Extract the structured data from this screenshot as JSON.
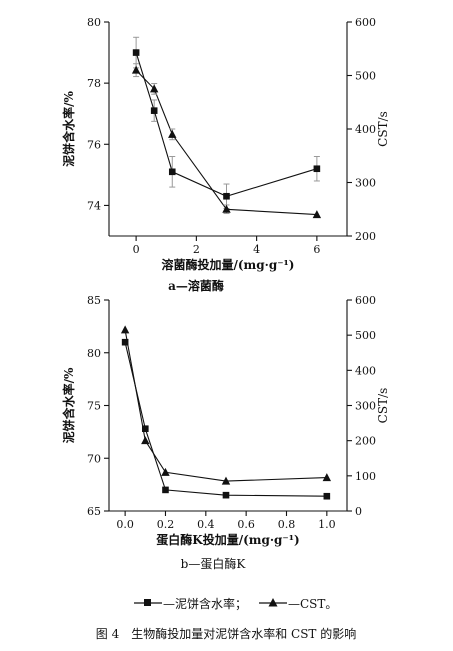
{
  "chart_data": [
    {
      "type": "line",
      "xlabel": "溶菌酶投加量/(mg·g⁻¹)",
      "ylabel_left": "泥饼含水率/%",
      "ylabel_right": "CST/s",
      "caption": "a—溶菌酶",
      "xlim": [
        -0.9,
        7
      ],
      "ylim_left": [
        73,
        80
      ],
      "ylim_right": [
        200,
        600
      ],
      "xticks": [
        0,
        2,
        4,
        6
      ],
      "yticks_left": [
        74,
        76,
        78,
        80
      ],
      "yticks_right": [
        200,
        300,
        400,
        500,
        600
      ],
      "series": [
        {
          "axis": "left",
          "marker": "square",
          "x": [
            0,
            0.6,
            1.2,
            3,
            6
          ],
          "y": [
            79.0,
            77.1,
            75.1,
            74.3,
            75.2
          ],
          "err": [
            0.5,
            0.35,
            0.5,
            0.4,
            0.4
          ]
        },
        {
          "axis": "right",
          "marker": "triangle",
          "x": [
            0,
            0.6,
            1.2,
            3,
            6
          ],
          "y": [
            510,
            475,
            390,
            250,
            240
          ],
          "err": [
            12,
            10,
            10,
            8,
            0
          ]
        }
      ]
    },
    {
      "type": "line",
      "xlabel": "蛋白酶K投加量/(mg·g⁻¹)",
      "ylabel_left": "泥饼含水率/%",
      "ylabel_right": "CST/s",
      "caption": "b—蛋白酶K",
      "xlim": [
        -0.08,
        1.1
      ],
      "ylim_left": [
        65,
        85
      ],
      "ylim_right": [
        0,
        600
      ],
      "xticks": [
        0.0,
        0.2,
        0.4,
        0.6,
        0.8,
        1.0
      ],
      "yticks_left": [
        65,
        70,
        75,
        80,
        85
      ],
      "yticks_right": [
        0,
        100,
        200,
        300,
        400,
        500,
        600
      ],
      "series": [
        {
          "axis": "left",
          "marker": "square",
          "x": [
            0,
            0.1,
            0.2,
            0.5,
            1.0
          ],
          "y": [
            81.0,
            72.8,
            67.0,
            66.5,
            66.4
          ],
          "err": [
            0,
            0,
            0,
            0,
            0
          ]
        },
        {
          "axis": "right",
          "marker": "triangle",
          "x": [
            0,
            0.1,
            0.2,
            0.5,
            1.0
          ],
          "y": [
            515,
            200,
            110,
            85,
            95
          ],
          "err": [
            0,
            0,
            0,
            0,
            0
          ]
        }
      ]
    }
  ],
  "legend": {
    "square_label": "—泥饼含水率；",
    "triangle_label": "—CST。"
  },
  "figure_caption": "图 4　生物酶投加量对泥饼含水率和 CST 的影响"
}
